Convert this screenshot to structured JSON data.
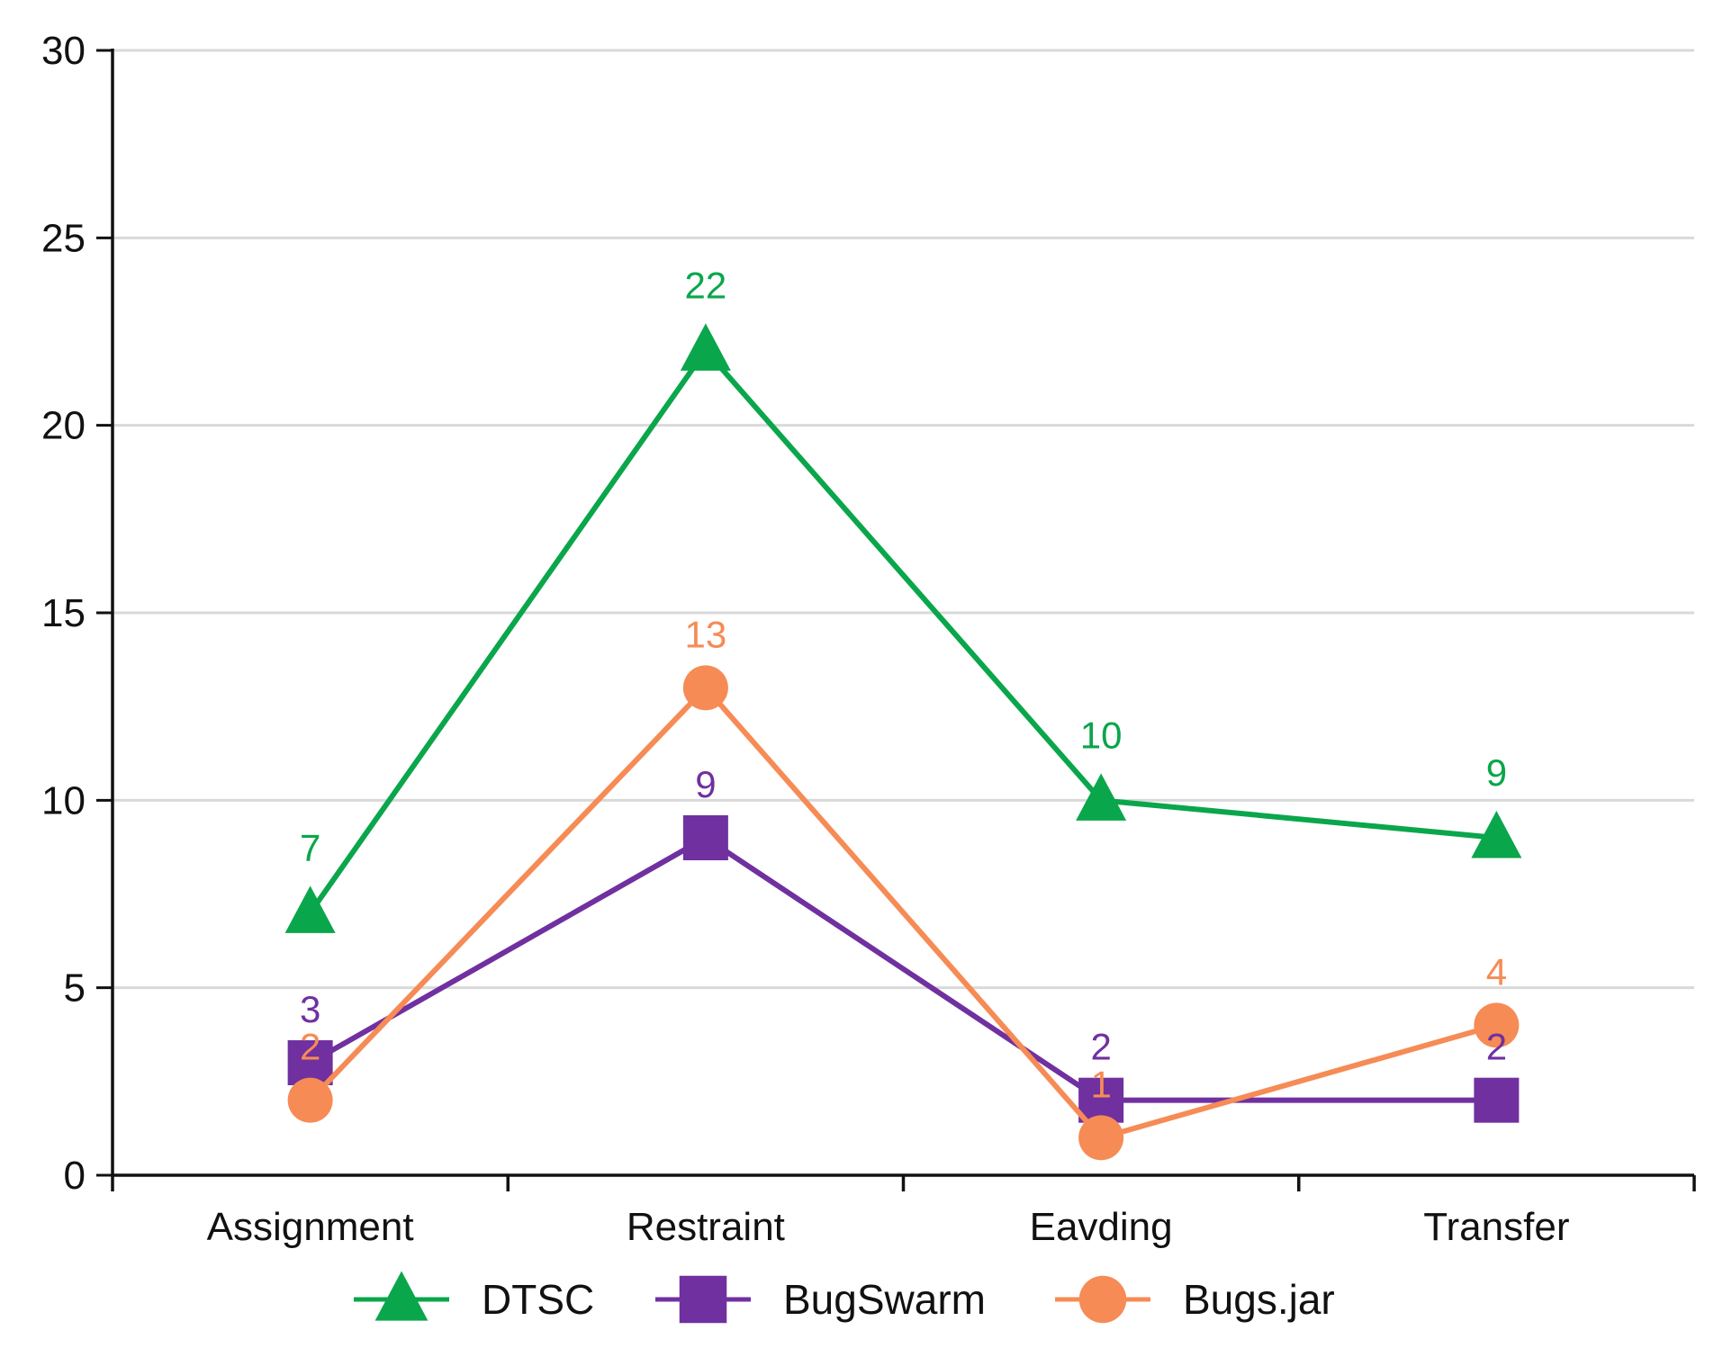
{
  "chart_data": {
    "type": "line",
    "title": "",
    "xlabel": "",
    "ylabel": "",
    "categories": [
      "Assignment",
      "Restraint",
      "Eavding",
      "Transfer"
    ],
    "ylim": [
      0,
      30
    ],
    "yticks": [
      "0",
      "5",
      "10",
      "15",
      "20",
      "25",
      "30"
    ],
    "grid": true,
    "legend_position": "bottom",
    "series": [
      {
        "name": "DTSC",
        "marker": "triangle",
        "color": "#0aa64b",
        "values": [
          7,
          22,
          10,
          9
        ],
        "labels": [
          "7",
          "22",
          "10",
          "9"
        ]
      },
      {
        "name": "BugSwarm",
        "marker": "square",
        "color": "#7030a0",
        "values": [
          3,
          9,
          2,
          2
        ],
        "labels": [
          "3",
          "9",
          "2",
          "2"
        ]
      },
      {
        "name": "Bugs.jar",
        "marker": "circle",
        "color": "#f68b55",
        "values": [
          2,
          13,
          1,
          4
        ],
        "labels": [
          "2",
          "13",
          "1",
          "4"
        ]
      }
    ]
  }
}
